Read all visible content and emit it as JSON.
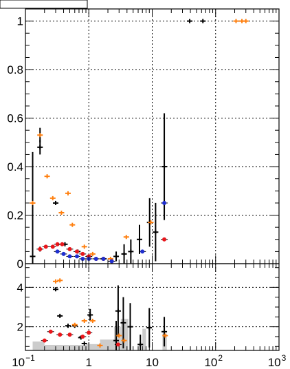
{
  "chart_data": [
    {
      "type": "scatter",
      "xscale": "log",
      "xlim": [
        0.1,
        1000
      ],
      "ylim": [
        0,
        1.05
      ],
      "grid": true,
      "title": "",
      "xlabel": "",
      "ylabel": "",
      "y_ticks": [
        0,
        0.2,
        0.4,
        0.6,
        0.8,
        1
      ],
      "y_tick_labels": [
        "0",
        "0.2",
        "0.4",
        "0.6",
        "0.8",
        "1"
      ],
      "colors": {
        "black": "#000000",
        "orange": "#ff7f0e",
        "red": "#e8161b",
        "blue": "#1f2fd0"
      },
      "series": [
        {
          "color_key": "black",
          "marker": "cross",
          "points": [
            {
              "x": 0.13,
              "y": 0.03,
              "err": 0.43
            },
            {
              "x": 0.17,
              "y": 0.48,
              "err": 0.03
            },
            {
              "x": 0.3,
              "y": 0.25,
              "err": 0.0
            },
            {
              "x": 0.42,
              "y": 0.08,
              "err": 0.0
            },
            {
              "x": 0.67,
              "y": 0.05,
              "err": 0.0
            },
            {
              "x": 1.0,
              "y": 0.03,
              "err": 0.0
            },
            {
              "x": 1.7,
              "y": 0.02,
              "err": 0.0
            },
            {
              "x": 2.7,
              "y": 0.03,
              "err": 0.02
            },
            {
              "x": 3.6,
              "y": 0.04,
              "err": 0.04
            },
            {
              "x": 4.6,
              "y": 0.05,
              "err": 0.05
            },
            {
              "x": 6.3,
              "y": 0.1,
              "err": 0.06
            },
            {
              "x": 9.1,
              "y": 0.17,
              "err": 0.1
            },
            {
              "x": 11.3,
              "y": 0.13,
              "err": 0.12
            },
            {
              "x": 15.5,
              "y": 0.4,
              "err": 0.22
            },
            {
              "x": 39,
              "y": 1.0,
              "err": 0.0
            },
            {
              "x": 63,
              "y": 1.0,
              "err": 0.0
            }
          ]
        },
        {
          "color_key": "orange",
          "marker": "cross",
          "points": [
            {
              "x": 0.13,
              "y": 0.25,
              "err": 0.0
            },
            {
              "x": 0.17,
              "y": 0.53,
              "err": 0.03
            },
            {
              "x": 0.22,
              "y": 0.36,
              "err": 0.0
            },
            {
              "x": 0.27,
              "y": 0.27,
              "err": 0.0
            },
            {
              "x": 0.37,
              "y": 0.21,
              "err": 0.0
            },
            {
              "x": 0.47,
              "y": 0.29,
              "err": 0.0
            },
            {
              "x": 0.55,
              "y": 0.16,
              "err": 0.0
            },
            {
              "x": 0.85,
              "y": 0.07,
              "err": 0.0
            },
            {
              "x": 1.15,
              "y": 0.04,
              "err": 0.0
            },
            {
              "x": 2.2,
              "y": 0.02,
              "err": 0.0
            },
            {
              "x": 3.9,
              "y": 0.11,
              "err": 0.0
            },
            {
              "x": 9.5,
              "y": 0.17,
              "err": 0.0
            },
            {
              "x": 210,
              "y": 1.0,
              "err": 0.0
            },
            {
              "x": 260,
              "y": 1.0,
              "err": 0.0
            },
            {
              "x": 300,
              "y": 1.0,
              "err": 0.0
            }
          ]
        },
        {
          "color_key": "red",
          "marker": "circle",
          "points": [
            {
              "x": 0.17,
              "y": 0.06,
              "err": 0.01
            },
            {
              "x": 0.21,
              "y": 0.07,
              "err": 0.0
            },
            {
              "x": 0.27,
              "y": 0.07,
              "err": 0.0
            },
            {
              "x": 0.32,
              "y": 0.08,
              "err": 0.0
            },
            {
              "x": 0.38,
              "y": 0.08,
              "err": 0.0
            },
            {
              "x": 0.5,
              "y": 0.06,
              "err": 0.0
            },
            {
              "x": 0.65,
              "y": 0.05,
              "err": 0.0
            },
            {
              "x": 0.8,
              "y": 0.04,
              "err": 0.0
            },
            {
              "x": 1.0,
              "y": 0.03,
              "err": 0.0
            },
            {
              "x": 1.3,
              "y": 0.02,
              "err": 0.0
            },
            {
              "x": 1.7,
              "y": 0.02,
              "err": 0.0
            },
            {
              "x": 2.3,
              "y": 0.01,
              "err": 0.0
            },
            {
              "x": 15.5,
              "y": 0.1,
              "err": 0.0
            }
          ]
        },
        {
          "color_key": "blue",
          "marker": "circle",
          "points": [
            {
              "x": 0.32,
              "y": 0.05,
              "err": 0.0
            },
            {
              "x": 0.4,
              "y": 0.04,
              "err": 0.0
            },
            {
              "x": 0.5,
              "y": 0.03,
              "err": 0.0
            },
            {
              "x": 0.65,
              "y": 0.03,
              "err": 0.0
            },
            {
              "x": 0.8,
              "y": 0.02,
              "err": 0.0
            },
            {
              "x": 1.0,
              "y": 0.02,
              "err": 0.0
            },
            {
              "x": 1.3,
              "y": 0.02,
              "err": 0.0
            },
            {
              "x": 1.7,
              "y": 0.02,
              "err": 0.0
            },
            {
              "x": 2.3,
              "y": 0.01,
              "err": 0.0
            },
            {
              "x": 7.0,
              "y": 0.05,
              "err": 0.0
            },
            {
              "x": 15.5,
              "y": 0.25,
              "err": 0.0
            }
          ]
        }
      ]
    },
    {
      "type": "scatter",
      "xscale": "log",
      "xlim": [
        0.1,
        1000
      ],
      "ylim": [
        0.8,
        5.2
      ],
      "grid": true,
      "y_ticks": [
        2,
        4
      ],
      "y_tick_labels": [
        "2",
        "4"
      ],
      "x_ticks": [
        0.1,
        1,
        10,
        100,
        1000
      ],
      "x_tick_labels": [
        {
          "base": "10",
          "exp": "−1"
        },
        {
          "base": "1",
          "exp": ""
        },
        {
          "base": "10",
          "exp": ""
        },
        {
          "base": "10",
          "exp": "2"
        },
        {
          "base": "10",
          "exp": "3"
        }
      ],
      "histogram": {
        "color": "#cccccc",
        "bins": [
          {
            "x0": 0.13,
            "x1": 0.2,
            "y": 1.25
          },
          {
            "x0": 0.2,
            "x1": 0.9,
            "y": 1.08
          },
          {
            "x0": 0.9,
            "x1": 1.5,
            "y": 1.12
          },
          {
            "x0": 1.5,
            "x1": 2.5,
            "y": 1.35
          },
          {
            "x0": 2.5,
            "x1": 3.2,
            "y": 2.0
          },
          {
            "x0": 3.2,
            "x1": 4.2,
            "y": 2.4
          },
          {
            "x0": 7.0,
            "x1": 8.0,
            "y": 1.9
          },
          {
            "x0": 14.5,
            "x1": 17.0,
            "y": 1.65
          }
        ]
      },
      "series": [
        {
          "color_key": "black",
          "marker": "cross",
          "points": [
            {
              "x": 0.3,
              "y": 3.9,
              "err": 0.0
            },
            {
              "x": 0.35,
              "y": 2.55,
              "err": 0.0
            },
            {
              "x": 0.47,
              "y": 2.05,
              "err": 0.0
            },
            {
              "x": 0.6,
              "y": 2.05,
              "err": 0.0
            },
            {
              "x": 0.75,
              "y": 1.45,
              "err": 0.0
            },
            {
              "x": 0.85,
              "y": 1.15,
              "err": 0.0
            },
            {
              "x": 1.05,
              "y": 2.6,
              "err": 0.3
            },
            {
              "x": 2.7,
              "y": 1.3,
              "err": 1.0
            },
            {
              "x": 2.9,
              "y": 2.8,
              "err": 1.3
            },
            {
              "x": 3.5,
              "y": 2.2,
              "err": 1.3
            },
            {
              "x": 4.5,
              "y": 2.0,
              "err": 1.2
            },
            {
              "x": 6.5,
              "y": 1.1,
              "err": 0.5
            },
            {
              "x": 9.0,
              "y": 1.95,
              "err": 1.0
            },
            {
              "x": 15.5,
              "y": 1.75,
              "err": 0.75
            }
          ]
        },
        {
          "color_key": "orange",
          "marker": "cross",
          "points": [
            {
              "x": 0.3,
              "y": 4.3,
              "err": 0.0
            },
            {
              "x": 0.35,
              "y": 4.35,
              "err": 0.0
            },
            {
              "x": 0.6,
              "y": 2.1,
              "err": 0.0
            },
            {
              "x": 0.85,
              "y": 2.3,
              "err": 0.0
            },
            {
              "x": 1.15,
              "y": 2.3,
              "err": 0.0
            },
            {
              "x": 1.5,
              "y": 1.05,
              "err": 0.0
            },
            {
              "x": 3.0,
              "y": 1.55,
              "err": 0.0
            },
            {
              "x": 3.6,
              "y": 1.3,
              "err": 0.0
            },
            {
              "x": 16,
              "y": 1.55,
              "err": 0.0
            }
          ]
        },
        {
          "color_key": "red",
          "marker": "circle",
          "points": [
            {
              "x": 0.2,
              "y": 1.3,
              "err": 0.0
            },
            {
              "x": 0.25,
              "y": 1.75,
              "err": 0.0
            },
            {
              "x": 0.35,
              "y": 1.6,
              "err": 0.0
            },
            {
              "x": 0.5,
              "y": 1.6,
              "err": 0.0
            },
            {
              "x": 0.8,
              "y": 1.5,
              "err": 0.0
            },
            {
              "x": 1.0,
              "y": 1.7,
              "err": 0.0
            },
            {
              "x": 2.9,
              "y": 1.1,
              "err": 0.0
            }
          ]
        }
      ]
    }
  ]
}
